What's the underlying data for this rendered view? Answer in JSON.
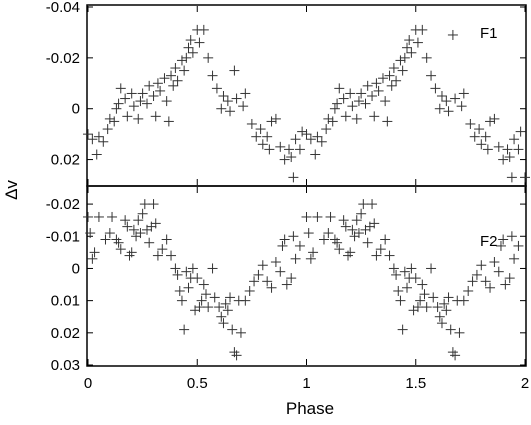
{
  "chart_data": [
    {
      "type": "scatter",
      "panel_label": "F1",
      "xlim": [
        0,
        2
      ],
      "ylim": [
        0.03,
        -0.04
      ],
      "y_inverted": true,
      "y_ticks": [
        "-0.04",
        "-0.02",
        "0",
        "0.02"
      ],
      "y_tick_values": [
        -0.04,
        -0.02,
        0,
        0.02
      ],
      "x_ticks": [
        0,
        0.5,
        1,
        1.5,
        2
      ],
      "grid": false,
      "marker": "plus",
      "points": [
        [
          0.0,
          0.01
        ],
        [
          0.02,
          0.012
        ],
        [
          0.04,
          0.018
        ],
        [
          0.05,
          0.011
        ],
        [
          0.07,
          0.013
        ],
        [
          0.09,
          0.008
        ],
        [
          0.1,
          0.004
        ],
        [
          0.12,
          0.005
        ],
        [
          0.13,
          0.0
        ],
        [
          0.14,
          -0.002
        ],
        [
          0.15,
          -0.008
        ],
        [
          0.17,
          -0.004
        ],
        [
          0.18,
          0.003
        ],
        [
          0.2,
          -0.006
        ],
        [
          0.21,
          -0.001
        ],
        [
          0.23,
          0.004
        ],
        [
          0.24,
          -0.003
        ],
        [
          0.25,
          -0.006
        ],
        [
          0.27,
          -0.002
        ],
        [
          0.28,
          -0.009
        ],
        [
          0.3,
          -0.005
        ],
        [
          0.31,
          0.003
        ],
        [
          0.32,
          -0.01
        ],
        [
          0.33,
          -0.007
        ],
        [
          0.35,
          -0.012
        ],
        [
          0.36,
          -0.003
        ],
        [
          0.37,
          0.005
        ],
        [
          0.38,
          -0.013
        ],
        [
          0.39,
          -0.009
        ],
        [
          0.4,
          -0.016
        ],
        [
          0.41,
          -0.011
        ],
        [
          0.43,
          -0.019
        ],
        [
          0.44,
          -0.015
        ],
        [
          0.45,
          -0.02
        ],
        [
          0.46,
          -0.024
        ],
        [
          0.47,
          -0.027
        ],
        [
          0.48,
          -0.022
        ],
        [
          0.5,
          -0.031
        ],
        [
          0.51,
          -0.026
        ],
        [
          0.53,
          -0.031
        ],
        [
          0.55,
          -0.02
        ],
        [
          0.57,
          -0.013
        ],
        [
          0.59,
          -0.008
        ],
        [
          0.61,
          0.0
        ],
        [
          0.62,
          -0.005
        ],
        [
          0.64,
          -0.003
        ],
        [
          0.65,
          0.001
        ],
        [
          0.67,
          -0.015
        ],
        [
          0.68,
          -0.004
        ],
        [
          0.71,
          -0.001
        ],
        [
          0.72,
          -0.006
        ],
        [
          0.75,
          0.006
        ],
        [
          0.77,
          0.011
        ],
        [
          0.79,
          0.008
        ],
        [
          0.8,
          0.014
        ],
        [
          0.82,
          0.011
        ],
        [
          0.83,
          0.016
        ],
        [
          0.84,
          0.005
        ],
        [
          0.86,
          0.004
        ],
        [
          0.88,
          0.015
        ],
        [
          0.9,
          0.02
        ],
        [
          0.92,
          0.016
        ],
        [
          0.93,
          0.019
        ],
        [
          0.94,
          0.027
        ],
        [
          0.95,
          0.012
        ],
        [
          0.97,
          0.016
        ],
        [
          0.98,
          0.009
        ],
        [
          1.0,
          0.01
        ],
        [
          1.02,
          0.012
        ],
        [
          1.04,
          0.018
        ],
        [
          1.05,
          0.011
        ],
        [
          1.07,
          0.013
        ],
        [
          1.09,
          0.008
        ],
        [
          1.1,
          0.004
        ],
        [
          1.12,
          0.005
        ],
        [
          1.13,
          0.0
        ],
        [
          1.14,
          -0.002
        ],
        [
          1.15,
          -0.008
        ],
        [
          1.17,
          -0.004
        ],
        [
          1.18,
          0.003
        ],
        [
          1.2,
          -0.006
        ],
        [
          1.21,
          -0.001
        ],
        [
          1.23,
          0.004
        ],
        [
          1.24,
          -0.003
        ],
        [
          1.25,
          -0.006
        ],
        [
          1.27,
          -0.002
        ],
        [
          1.28,
          -0.009
        ],
        [
          1.3,
          -0.005
        ],
        [
          1.31,
          0.003
        ],
        [
          1.32,
          -0.01
        ],
        [
          1.33,
          -0.007
        ],
        [
          1.35,
          -0.012
        ],
        [
          1.36,
          -0.003
        ],
        [
          1.37,
          0.005
        ],
        [
          1.38,
          -0.013
        ],
        [
          1.39,
          -0.009
        ],
        [
          1.4,
          -0.016
        ],
        [
          1.41,
          -0.011
        ],
        [
          1.43,
          -0.019
        ],
        [
          1.44,
          -0.015
        ],
        [
          1.45,
          -0.02
        ],
        [
          1.46,
          -0.024
        ],
        [
          1.47,
          -0.027
        ],
        [
          1.48,
          -0.022
        ],
        [
          1.5,
          -0.031
        ],
        [
          1.51,
          -0.026
        ],
        [
          1.53,
          -0.031
        ],
        [
          1.55,
          -0.02
        ],
        [
          1.57,
          -0.013
        ],
        [
          1.59,
          -0.008
        ],
        [
          1.61,
          0.0
        ],
        [
          1.62,
          -0.005
        ],
        [
          1.64,
          -0.003
        ],
        [
          1.65,
          0.001
        ],
        [
          1.67,
          -0.029
        ],
        [
          1.68,
          -0.004
        ],
        [
          1.71,
          -0.001
        ],
        [
          1.72,
          -0.006
        ],
        [
          1.75,
          0.006
        ],
        [
          1.77,
          0.011
        ],
        [
          1.79,
          0.008
        ],
        [
          1.8,
          0.014
        ],
        [
          1.82,
          0.011
        ],
        [
          1.83,
          0.016
        ],
        [
          1.84,
          0.005
        ],
        [
          1.86,
          0.004
        ],
        [
          1.88,
          0.015
        ],
        [
          1.9,
          0.02
        ],
        [
          1.92,
          0.016
        ],
        [
          1.93,
          0.019
        ],
        [
          1.94,
          0.027
        ],
        [
          1.95,
          0.012
        ],
        [
          1.97,
          0.016
        ],
        [
          1.98,
          0.009
        ],
        [
          2.0,
          0.027
        ]
      ]
    },
    {
      "type": "scatter",
      "panel_label": "F2",
      "xlim": [
        0,
        2
      ],
      "ylim": [
        0.03,
        -0.025
      ],
      "y_inverted": true,
      "y_ticks": [
        "-0.02",
        "-0.01",
        "0",
        "0.01",
        "0.02",
        "0.03"
      ],
      "y_tick_values": [
        -0.02,
        -0.01,
        0,
        0.01,
        0.02,
        0.03
      ],
      "x_ticks": [
        0,
        0.5,
        1,
        1.5,
        2
      ],
      "grid": false,
      "marker": "plus",
      "points": [
        [
          0.0,
          -0.016
        ],
        [
          0.01,
          -0.011
        ],
        [
          0.02,
          -0.003
        ],
        [
          0.03,
          -0.005
        ],
        [
          0.05,
          -0.016
        ],
        [
          0.08,
          -0.009
        ],
        [
          0.1,
          -0.011
        ],
        [
          0.11,
          -0.016
        ],
        [
          0.13,
          -0.009
        ],
        [
          0.14,
          -0.008
        ],
        [
          0.15,
          -0.006
        ],
        [
          0.17,
          -0.015
        ],
        [
          0.18,
          -0.013
        ],
        [
          0.19,
          -0.004
        ],
        [
          0.2,
          -0.005
        ],
        [
          0.21,
          -0.012
        ],
        [
          0.22,
          -0.01
        ],
        [
          0.23,
          -0.015
        ],
        [
          0.24,
          -0.011
        ],
        [
          0.25,
          -0.017
        ],
        [
          0.26,
          -0.02
        ],
        [
          0.27,
          -0.012
        ],
        [
          0.28,
          -0.008
        ],
        [
          0.29,
          -0.013
        ],
        [
          0.3,
          -0.02
        ],
        [
          0.31,
          -0.014
        ],
        [
          0.32,
          -0.004
        ],
        [
          0.34,
          -0.006
        ],
        [
          0.36,
          -0.009
        ],
        [
          0.38,
          -0.004
        ],
        [
          0.4,
          0.0
        ],
        [
          0.41,
          0.002
        ],
        [
          0.42,
          0.007
        ],
        [
          0.43,
          0.01
        ],
        [
          0.44,
          0.019
        ],
        [
          0.45,
          0.001
        ],
        [
          0.46,
          0.006
        ],
        [
          0.47,
          0.003
        ],
        [
          0.48,
          0.0
        ],
        [
          0.49,
          0.013
        ],
        [
          0.5,
          0.003
        ],
        [
          0.51,
          0.012
        ],
        [
          0.52,
          0.01
        ],
        [
          0.53,
          0.005
        ],
        [
          0.54,
          0.008
        ],
        [
          0.55,
          0.012
        ],
        [
          0.57,
          0.0
        ],
        [
          0.58,
          0.009
        ],
        [
          0.6,
          0.012
        ],
        [
          0.61,
          0.015
        ],
        [
          0.62,
          0.017
        ],
        [
          0.63,
          0.011
        ],
        [
          0.64,
          0.013
        ],
        [
          0.65,
          0.009
        ],
        [
          0.66,
          0.019
        ],
        [
          0.67,
          0.026
        ],
        [
          0.68,
          0.027
        ],
        [
          0.69,
          0.01
        ],
        [
          0.7,
          0.02
        ],
        [
          0.72,
          0.01
        ],
        [
          0.74,
          0.007
        ],
        [
          0.76,
          0.004
        ],
        [
          0.78,
          0.002
        ],
        [
          0.8,
          -0.001
        ],
        [
          0.82,
          0.004
        ],
        [
          0.84,
          0.006
        ],
        [
          0.86,
          -0.002
        ],
        [
          0.88,
          0.001
        ],
        [
          0.89,
          -0.007
        ],
        [
          0.9,
          -0.009
        ],
        [
          0.91,
          0.005
        ],
        [
          0.93,
          0.003
        ],
        [
          0.94,
          -0.01
        ],
        [
          0.95,
          -0.003
        ],
        [
          0.97,
          -0.007
        ],
        [
          1.0,
          -0.016
        ],
        [
          1.01,
          -0.011
        ],
        [
          1.02,
          -0.003
        ],
        [
          1.03,
          -0.005
        ],
        [
          1.05,
          -0.016
        ],
        [
          1.08,
          -0.009
        ],
        [
          1.1,
          -0.011
        ],
        [
          1.11,
          -0.016
        ],
        [
          1.13,
          -0.009
        ],
        [
          1.14,
          -0.008
        ],
        [
          1.15,
          -0.006
        ],
        [
          1.17,
          -0.015
        ],
        [
          1.18,
          -0.013
        ],
        [
          1.19,
          -0.004
        ],
        [
          1.2,
          -0.005
        ],
        [
          1.21,
          -0.012
        ],
        [
          1.22,
          -0.01
        ],
        [
          1.23,
          -0.015
        ],
        [
          1.24,
          -0.011
        ],
        [
          1.25,
          -0.017
        ],
        [
          1.26,
          -0.02
        ],
        [
          1.27,
          -0.012
        ],
        [
          1.28,
          -0.008
        ],
        [
          1.29,
          -0.013
        ],
        [
          1.3,
          -0.02
        ],
        [
          1.31,
          -0.014
        ],
        [
          1.32,
          -0.004
        ],
        [
          1.34,
          -0.006
        ],
        [
          1.36,
          -0.009
        ],
        [
          1.38,
          -0.004
        ],
        [
          1.4,
          0.0
        ],
        [
          1.41,
          0.002
        ],
        [
          1.42,
          0.007
        ],
        [
          1.43,
          0.01
        ],
        [
          1.44,
          0.019
        ],
        [
          1.45,
          0.001
        ],
        [
          1.46,
          0.006
        ],
        [
          1.47,
          0.003
        ],
        [
          1.48,
          0.0
        ],
        [
          1.49,
          0.013
        ],
        [
          1.5,
          0.003
        ],
        [
          1.51,
          0.012
        ],
        [
          1.52,
          0.01
        ],
        [
          1.53,
          0.005
        ],
        [
          1.54,
          0.008
        ],
        [
          1.55,
          0.012
        ],
        [
          1.57,
          0.0
        ],
        [
          1.58,
          0.009
        ],
        [
          1.6,
          0.012
        ],
        [
          1.61,
          0.015
        ],
        [
          1.62,
          0.017
        ],
        [
          1.63,
          0.011
        ],
        [
          1.64,
          0.013
        ],
        [
          1.65,
          0.009
        ],
        [
          1.66,
          0.019
        ],
        [
          1.67,
          0.026
        ],
        [
          1.68,
          0.027
        ],
        [
          1.69,
          0.01
        ],
        [
          1.7,
          0.02
        ],
        [
          1.72,
          0.01
        ],
        [
          1.74,
          0.007
        ],
        [
          1.76,
          0.004
        ],
        [
          1.78,
          0.002
        ],
        [
          1.8,
          -0.001
        ],
        [
          1.82,
          0.004
        ],
        [
          1.84,
          0.006
        ],
        [
          1.86,
          -0.002
        ],
        [
          1.88,
          0.001
        ],
        [
          1.89,
          -0.007
        ],
        [
          1.9,
          -0.009
        ],
        [
          1.91,
          0.005
        ],
        [
          1.93,
          0.003
        ],
        [
          1.94,
          -0.01
        ],
        [
          1.95,
          -0.003
        ],
        [
          1.97,
          -0.007
        ]
      ]
    }
  ],
  "x_axis": {
    "label": "Phase",
    "tick_labels": [
      "0",
      "0.5",
      "1",
      "1.5",
      "2"
    ]
  },
  "y_axis": {
    "label": "Δv"
  },
  "colors": {
    "marker": "#333333",
    "axis": "#000000",
    "background": "#ffffff"
  }
}
